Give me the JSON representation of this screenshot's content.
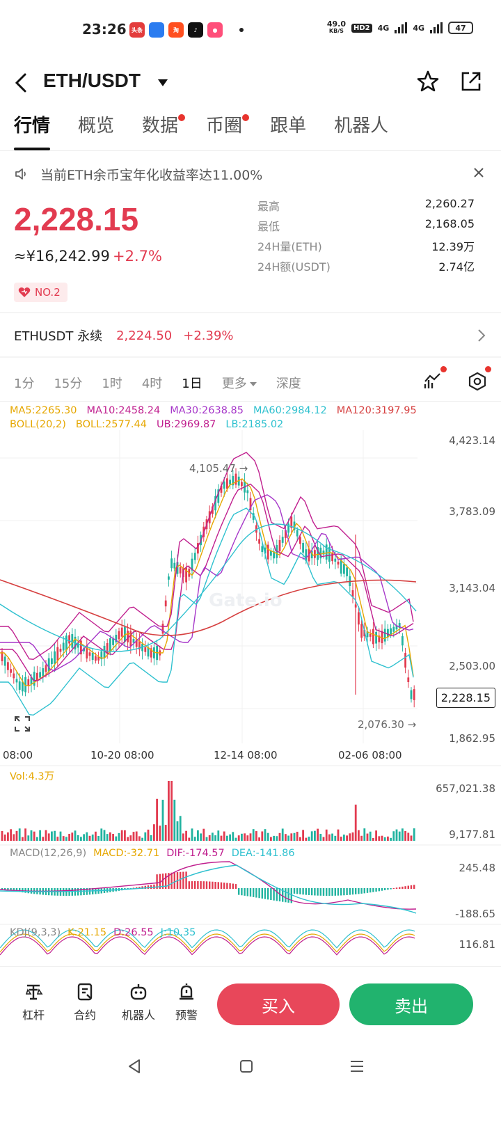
{
  "status_bar": {
    "time": "23:26",
    "apps": [
      {
        "label": "头条",
        "color": "#e33c3c"
      },
      {
        "label": "",
        "color": "#2b7cf0"
      },
      {
        "label": "淘",
        "color": "#ff4f1f"
      },
      {
        "label": "",
        "color": "#111111"
      },
      {
        "label": "",
        "color": "#ff4f7a"
      }
    ],
    "net_speed": "49.0",
    "net_unit": "KB/S",
    "hd": "HD2",
    "signal1": "4G",
    "signal2": "4G",
    "battery": "47"
  },
  "header": {
    "title": "ETH/USDT"
  },
  "tabs": [
    {
      "label": "行情",
      "active": true,
      "dot": false
    },
    {
      "label": "概览",
      "active": false,
      "dot": false
    },
    {
      "label": "数据",
      "active": false,
      "dot": true
    },
    {
      "label": "币圈",
      "active": false,
      "dot": true
    },
    {
      "label": "跟单",
      "active": false,
      "dot": false
    },
    {
      "label": "机器人",
      "active": false,
      "dot": false
    }
  ],
  "notice": {
    "text": "当前ETH余币宝年化收益率达11.00%"
  },
  "price": {
    "last": "2,228.15",
    "cny": "≈¥16,242.99",
    "change": "+2.7%",
    "rank": "NO.2"
  },
  "stats": [
    {
      "label": "最高",
      "value": "2,260.27"
    },
    {
      "label": "最低",
      "value": "2,168.05"
    },
    {
      "label": "24H量(ETH)",
      "value": "12.39万"
    },
    {
      "label": "24H额(USDT)",
      "value": "2.74亿"
    }
  ],
  "perpetual": {
    "name": "ETHUSDT 永续",
    "price": "2,224.50",
    "change": "+2.39%"
  },
  "intervals": [
    {
      "label": "1分",
      "active": false
    },
    {
      "label": "15分",
      "active": false
    },
    {
      "label": "1时",
      "active": false
    },
    {
      "label": "4时",
      "active": false
    },
    {
      "label": "1日",
      "active": true
    },
    {
      "label": "更多",
      "active": false
    },
    {
      "label": "深度",
      "active": false
    }
  ],
  "colors": {
    "up": "#e23b50",
    "down": "#21b3a0",
    "ma5": "#e6a700",
    "ma10": "#c0208f",
    "ma30": "#a637c9",
    "ma60": "#2fc1cf",
    "ma120": "#d64040",
    "boll": "#e6a700",
    "ub": "#c0208f",
    "lb": "#2fc1cf"
  },
  "chart": {
    "ma_row1": {
      "ma5": "MA5:2265.30",
      "ma10": "MA10:2458.24",
      "ma30": "MA30:2638.85",
      "ma60": "MA60:2984.12",
      "ma120": "MA120:3197.95"
    },
    "ma_row2": {
      "boll": "BOLL(20,2)",
      "boll_val": "BOLL:2577.44",
      "ub": "UB:2969.87",
      "lb": "LB:2185.02"
    },
    "y_axis": [
      "4,423.14",
      "3,783.09",
      "3,143.04",
      "2,503.00",
      "1,862.95"
    ],
    "x_axis": [
      "08:00",
      "10-20 08:00",
      "12-14 08:00",
      "02-06 08:00"
    ],
    "current_price": "2,228.15",
    "high_annot": "4,105.47 →",
    "low_annot": "2,076.30 →",
    "watermark": "Gate.io",
    "volume": {
      "label": "Vol:4.3万",
      "y_axis": [
        "657,021.38",
        "9,177.81"
      ]
    },
    "macd": {
      "params": "MACD(12,26,9)",
      "macd": "MACD:-32.71",
      "dif": "DIF:-174.57",
      "dea": "DEA:-141.86",
      "y_axis": [
        "245.48",
        "-188.65"
      ]
    },
    "kdj": {
      "params": "KDJ(9,3,3)",
      "k": "K:21.15",
      "d": "D:26.55",
      "j": "J:10.35",
      "y_axis": [
        "116.81"
      ]
    }
  },
  "bottom_bar": {
    "items": [
      {
        "label": "杠杆",
        "icon": "leverage-icon"
      },
      {
        "label": "合约",
        "icon": "contract-icon"
      },
      {
        "label": "机器人",
        "icon": "robot-icon"
      },
      {
        "label": "预警",
        "icon": "alert-icon"
      }
    ],
    "buy": "买入",
    "sell": "卖出"
  }
}
